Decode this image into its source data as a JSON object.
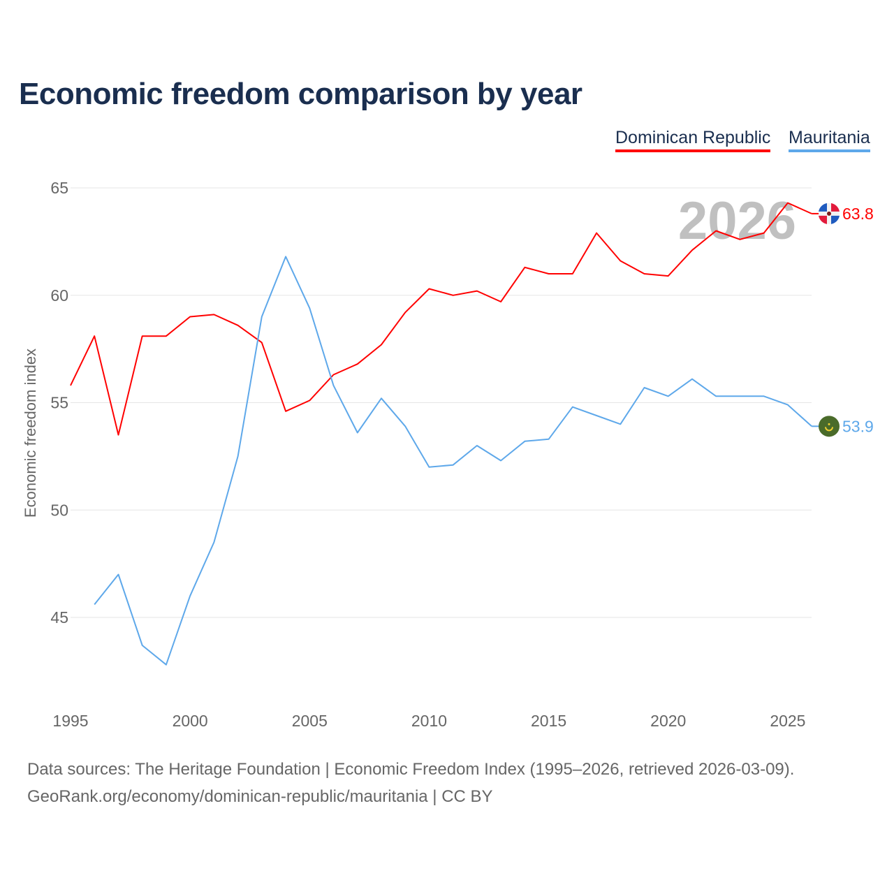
{
  "title": "Economic freedom comparison by year",
  "colors": {
    "dr": "#ff0000",
    "mr": "#5ea8ea",
    "year_watermark": "#c0c0c0",
    "grid": "#e6e6e6"
  },
  "chart_data": {
    "type": "line",
    "title": "Economic freedom comparison by year",
    "xlabel": "",
    "ylabel": "Economic freedom index",
    "xlim": [
      1995,
      2026
    ],
    "ylim": [
      42,
      66
    ],
    "yticks": [
      45,
      50,
      55,
      60,
      65
    ],
    "xticks": [
      1995,
      2000,
      2005,
      2010,
      2015,
      2020,
      2025
    ],
    "grid": true,
    "legend": "top-right",
    "year_label": "2026",
    "series": [
      {
        "name": "Dominican Republic",
        "color": "#ff0000",
        "end_label": "63.8",
        "x": [
          1995,
          1996,
          1997,
          1998,
          1999,
          2000,
          2001,
          2002,
          2003,
          2004,
          2005,
          2006,
          2007,
          2008,
          2009,
          2010,
          2011,
          2012,
          2013,
          2014,
          2015,
          2016,
          2017,
          2018,
          2019,
          2020,
          2021,
          2022,
          2023,
          2024,
          2025,
          2026
        ],
        "values": [
          55.8,
          58.1,
          53.5,
          58.1,
          58.1,
          59.0,
          59.1,
          58.6,
          57.8,
          54.6,
          55.1,
          56.3,
          56.8,
          57.7,
          59.2,
          60.3,
          60.0,
          60.2,
          59.7,
          61.3,
          61.0,
          61.0,
          62.9,
          61.6,
          61.0,
          60.9,
          62.1,
          63.0,
          62.6,
          62.9,
          64.3,
          63.8
        ]
      },
      {
        "name": "Mauritania",
        "color": "#5ea8ea",
        "end_label": "53.9",
        "x": [
          1996,
          1997,
          1998,
          1999,
          2000,
          2001,
          2002,
          2003,
          2004,
          2005,
          2006,
          2007,
          2008,
          2009,
          2010,
          2011,
          2012,
          2013,
          2014,
          2015,
          2016,
          2017,
          2018,
          2019,
          2020,
          2021,
          2022,
          2023,
          2024,
          2025,
          2026
        ],
        "values": [
          45.6,
          47.0,
          43.7,
          42.8,
          46.0,
          48.5,
          52.5,
          59.0,
          61.8,
          59.4,
          55.8,
          53.6,
          55.2,
          53.9,
          52.0,
          52.1,
          53.0,
          52.3,
          53.2,
          53.3,
          54.8,
          54.4,
          54.0,
          55.7,
          55.3,
          56.1,
          55.3,
          55.3,
          55.3,
          54.9,
          53.9
        ]
      }
    ]
  },
  "footer": {
    "line1": "Data sources: The Heritage Foundation | Economic Freedom Index (1995–2026, retrieved 2026-03-09).",
    "line2": "GeoRank.org/economy/dominican-republic/mauritania | CC BY"
  }
}
